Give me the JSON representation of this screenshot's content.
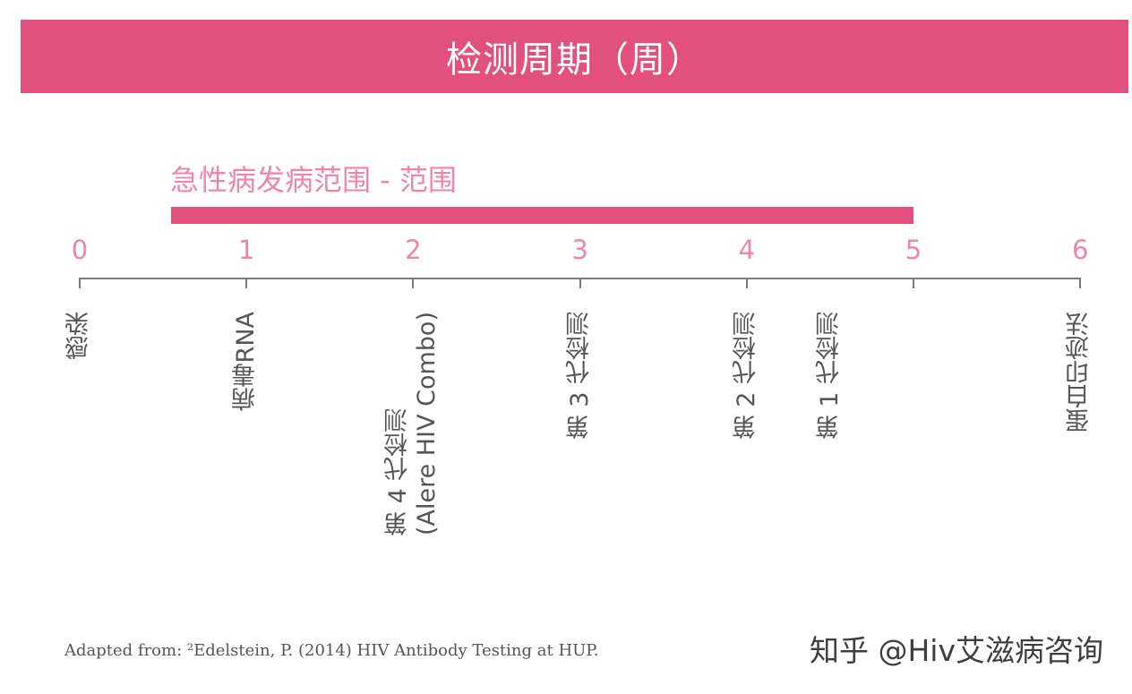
{
  "header": {
    "title": "检测周期（周）"
  },
  "range": {
    "label": "急性病发病范围 - 范围",
    "start_week": 0.55,
    "end_week": 5
  },
  "axis": {
    "ticks": [
      "0",
      "1",
      "2",
      "3",
      "4",
      "5",
      "6"
    ]
  },
  "events": [
    {
      "week": 0,
      "lines": [
        "感染"
      ]
    },
    {
      "week": 1,
      "lines": [
        "病毒RNA"
      ]
    },
    {
      "week": 2,
      "lines": [
        "第 4 代检测",
        "(Alere HIV Combo)"
      ]
    },
    {
      "week": 3,
      "lines": [
        "第 3 代检测"
      ]
    },
    {
      "week": 4,
      "lines": [
        "第 2 代检测"
      ]
    },
    {
      "week": 4.5,
      "lines": [
        "第 1 代检测"
      ]
    },
    {
      "week": 6,
      "lines": [
        "蛋白印迹法"
      ]
    }
  ],
  "footer": {
    "source": "Adapted from: ²Edelstein, P. (2014) HIV Antibody Testing at HUP.",
    "watermark": "知乎 @Hiv艾滋病咨询"
  },
  "colors": {
    "accent": "#e2507e",
    "accent_light": "#ee86a8",
    "text": "#555555"
  }
}
